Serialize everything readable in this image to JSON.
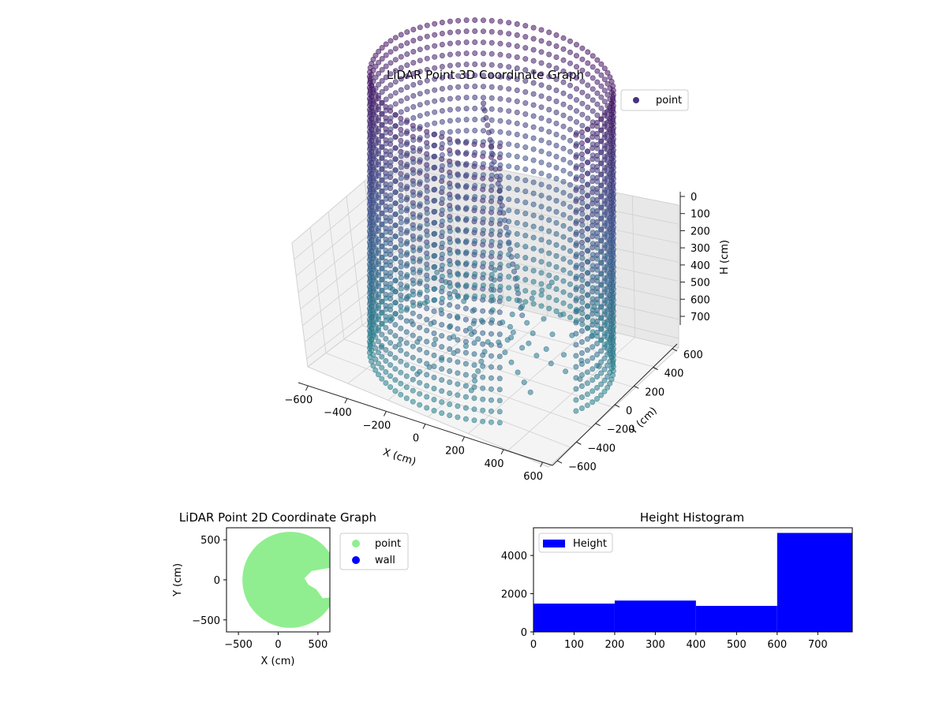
{
  "chart_data": [
    {
      "type": "scatter",
      "projection": "3d",
      "title": "LiDAR Point 3D Coordinate Graph",
      "xlabel": "X (cm)",
      "ylabel": "Y (cm)",
      "zlabel": "H (cm)",
      "xticks": [
        "−600",
        "−400",
        "−200",
        "0",
        "200",
        "400",
        "600"
      ],
      "yticks": [
        "600",
        "400",
        "200",
        "0",
        "−200",
        "−400",
        "−600"
      ],
      "zticks": [
        "0",
        "100",
        "200",
        "300",
        "400",
        "500",
        "600",
        "700"
      ],
      "xlim": [
        -650,
        650
      ],
      "ylim": [
        -650,
        650
      ],
      "zlim": [
        0,
        780
      ],
      "z_inverted": true,
      "grid": true,
      "legend": {
        "position": "top-right",
        "entries": [
          "point"
        ]
      },
      "series": [
        {
          "name": "point",
          "shape": "cylindrical wall",
          "radius": 560,
          "height_range": [
            0,
            780
          ],
          "colormap": "viridis (by height)",
          "colors": {
            "top": "#440154",
            "bottom": "#2a788e",
            "marker": "#46337f"
          }
        }
      ]
    },
    {
      "type": "scatter",
      "title": "LiDAR Point 2D Coordinate Graph",
      "xlabel": "X (cm)",
      "ylabel": "Y (cm)",
      "xticks": [
        "−500",
        "0",
        "500"
      ],
      "yticks": [
        "500",
        "0",
        "−500"
      ],
      "xlim": [
        -650,
        650
      ],
      "ylim": [
        -650,
        650
      ],
      "legend": {
        "position": "outside-right",
        "entries": [
          "point",
          "wall"
        ]
      },
      "series": [
        {
          "name": "point",
          "color": "#90ee90",
          "shape": "filled disk",
          "radius": 600,
          "center": [
            150,
            0
          ]
        },
        {
          "name": "wall",
          "color": "#0000ff"
        }
      ]
    },
    {
      "type": "bar",
      "subtype": "histogram",
      "title": "Height Histogram",
      "xlabel": "",
      "ylabel": "",
      "xticks": [
        "0",
        "100",
        "200",
        "300",
        "400",
        "500",
        "600",
        "700"
      ],
      "yticks": [
        "0",
        "2000",
        "4000"
      ],
      "xlim": [
        0,
        785
      ],
      "ylim": [
        0,
        5450
      ],
      "bin_edges": [
        0,
        200,
        400,
        600,
        785
      ],
      "values": [
        1480,
        1640,
        1360,
        5180
      ],
      "color": "#0000ff",
      "legend": {
        "position": "top-left",
        "entries": [
          "Height"
        ]
      }
    }
  ]
}
